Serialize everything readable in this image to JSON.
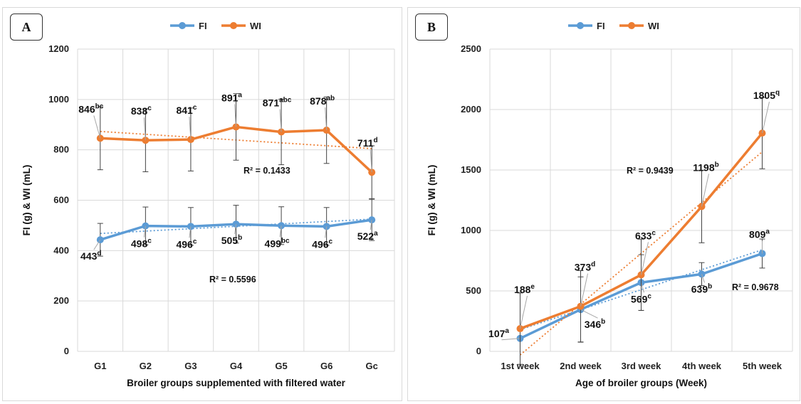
{
  "panels": [
    {
      "id": "A",
      "label": "A",
      "chart_data": {
        "type": "line",
        "categories": [
          "G1",
          "G2",
          "G3",
          "G4",
          "G5",
          "G6",
          "Gc"
        ],
        "xlabel": "Broiler groups supplemented with filtered water",
        "ylabel": "FI (g) & WI (mL)",
        "ylim": [
          0,
          1200
        ],
        "yticks": [
          0,
          200,
          400,
          600,
          800,
          1000,
          1200
        ],
        "grid": true,
        "legend": "top-center",
        "series": [
          {
            "name": "FI",
            "color": "#5b9bd5",
            "values": [
              443,
              498,
              496,
              505,
              499,
              496,
              522
            ],
            "errors": [
              65,
              75,
              75,
              75,
              75,
              75,
              82
            ],
            "labels": [
              {
                "v": "443",
                "s": "d"
              },
              {
                "v": "498",
                "s": "c"
              },
              {
                "v": "496",
                "s": "c"
              },
              {
                "v": "505",
                "s": "b"
              },
              {
                "v": "499",
                "s": "bc"
              },
              {
                "v": "496",
                "s": "c"
              },
              {
                "v": "522",
                "s": "a"
              }
            ],
            "trend": {
              "r2": "R² = 0.5596",
              "start": 468,
              "end": 525
            }
          },
          {
            "name": "WI",
            "color": "#ed7d31",
            "values": [
              846,
              838,
              841,
              891,
              871,
              878,
              711
            ],
            "errors": [
              125,
              125,
              125,
              132,
              130,
              132,
              105
            ],
            "labels": [
              {
                "v": "846",
                "s": "bc"
              },
              {
                "v": "838",
                "s": "c"
              },
              {
                "v": "841",
                "s": "c"
              },
              {
                "v": "891",
                "s": "a"
              },
              {
                "v": "871",
                "s": "abc"
              },
              {
                "v": "878",
                "s": "ab"
              },
              {
                "v": "711",
                "s": "d"
              }
            ],
            "trend": {
              "r2": "R² = 0.1433",
              "start": 873,
              "end": 805
            }
          }
        ]
      }
    },
    {
      "id": "B",
      "label": "B",
      "chart_data": {
        "type": "line",
        "categories": [
          "1st week",
          "2nd week",
          "3rd week",
          "4th week",
          "5th week"
        ],
        "xlabel": "Age of broiler groups (Week)",
        "ylabel": "FI (g) & WI (mL)",
        "ylim": [
          0,
          2500
        ],
        "yticks": [
          0,
          500,
          1000,
          1500,
          2000,
          2500
        ],
        "grid": true,
        "legend": "top-center",
        "series": [
          {
            "name": "FI",
            "color": "#5b9bd5",
            "values": [
              107,
              346,
              569,
              639,
              809
            ],
            "errors": [
              0,
              270,
              230,
              95,
              120
            ],
            "labels": [
              {
                "v": "107",
                "s": "a"
              },
              {
                "v": "346",
                "s": "b"
              },
              {
                "v": "569",
                "s": "c"
              },
              {
                "v": "639",
                "s": "b"
              },
              {
                "v": "809",
                "s": "a"
              }
            ],
            "trend": {
              "r2": "R² = 0.9678",
              "start": 180,
              "end": 840
            }
          },
          {
            "name": "WI",
            "color": "#ed7d31",
            "values": [
              188,
              373,
              633,
              1198,
              1805
            ],
            "errors": [
              295,
              295,
              295,
              300,
              295
            ],
            "labels": [
              {
                "v": "188",
                "s": "e"
              },
              {
                "v": "373",
                "s": "d"
              },
              {
                "v": "633",
                "s": "c"
              },
              {
                "v": "1198",
                "s": "b"
              },
              {
                "v": "1805",
                "s": "q"
              }
            ],
            "trend": {
              "r2": "R² = 0.9439",
              "start": -30,
              "end": 1650
            }
          }
        ]
      }
    }
  ]
}
